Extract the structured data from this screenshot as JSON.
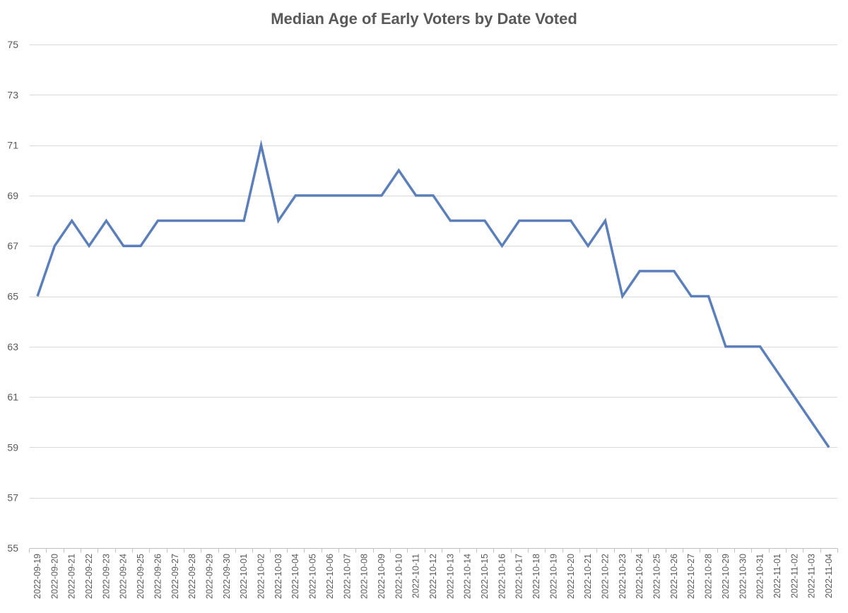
{
  "chart_data": {
    "type": "line",
    "title": "Median Age of Early Voters by Date Voted",
    "xlabel": "",
    "ylabel": "",
    "ylim": [
      55,
      75
    ],
    "y_ticks": [
      55,
      57,
      59,
      61,
      63,
      65,
      67,
      69,
      71,
      73,
      75
    ],
    "grid": true,
    "legend": "none",
    "colors": {
      "series": "#5b7fba",
      "grid": "#d9d9d9",
      "axis": "#bfbfbf",
      "text": "#595959"
    },
    "categories": [
      "2022-09-19",
      "2022-09-20",
      "2022-09-21",
      "2022-09-22",
      "2022-09-23",
      "2022-09-24",
      "2022-09-25",
      "2022-09-26",
      "2022-09-27",
      "2022-09-28",
      "2022-09-29",
      "2022-09-30",
      "2022-10-01",
      "2022-10-02",
      "2022-10-03",
      "2022-10-04",
      "2022-10-05",
      "2022-10-06",
      "2022-10-07",
      "2022-10-08",
      "2022-10-09",
      "2022-10-10",
      "2022-10-11",
      "2022-10-12",
      "2022-10-13",
      "2022-10-14",
      "2022-10-15",
      "2022-10-16",
      "2022-10-17",
      "2022-10-18",
      "2022-10-19",
      "2022-10-20",
      "2022-10-21",
      "2022-10-22",
      "2022-10-23",
      "2022-10-24",
      "2022-10-25",
      "2022-10-26",
      "2022-10-27",
      "2022-10-28",
      "2022-10-29",
      "2022-10-30",
      "2022-10-31",
      "2022-11-01",
      "2022-11-02",
      "2022-11-03",
      "2022-11-04"
    ],
    "series": [
      {
        "values": [
          65,
          67,
          68,
          67,
          68,
          67,
          67,
          68,
          68,
          68,
          68,
          68,
          68,
          71,
          68,
          69,
          69,
          69,
          69,
          69,
          69,
          70,
          69,
          69,
          68,
          68,
          68,
          67,
          68,
          68,
          68,
          68,
          67,
          68,
          65,
          66,
          66,
          66,
          65,
          65,
          63,
          63,
          63,
          62,
          61,
          60,
          59
        ]
      }
    ]
  }
}
